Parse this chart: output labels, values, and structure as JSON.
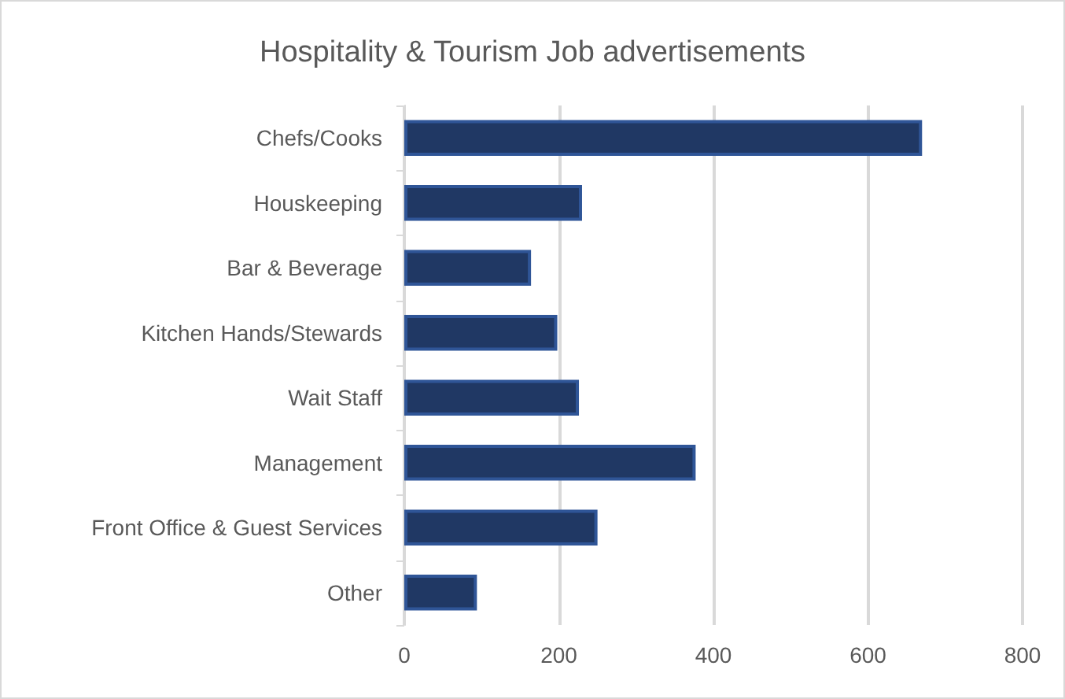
{
  "chart_data": {
    "type": "bar",
    "orientation": "horizontal",
    "title": "Hospitality & Tourism Job advertisements",
    "categories": [
      "Chefs/Cooks",
      "Houskeeping",
      "Bar & Beverage",
      "Kitchen Hands/Stewards",
      "Wait Staff",
      "Management",
      "Front Office & Guest Services",
      "Other"
    ],
    "values": [
      670,
      230,
      164,
      198,
      226,
      377,
      250,
      94
    ],
    "color": "#203864",
    "xlim": [
      0,
      800
    ],
    "xticks": [
      0,
      200,
      400,
      600,
      800
    ],
    "grid": "x"
  }
}
